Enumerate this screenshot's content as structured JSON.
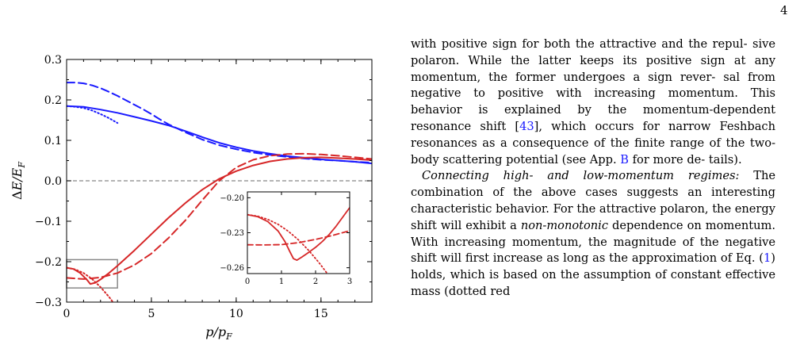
{
  "page_number": "4",
  "chart_data": [
    {
      "type": "line",
      "xlabel": "p/p_F",
      "ylabel": "ΔE/E_F",
      "xlim": [
        0,
        18
      ],
      "ylim": [
        -0.3,
        0.3
      ],
      "x_ticks": [
        "0",
        "5",
        "10",
        "15"
      ],
      "y_ticks": [
        "0.3",
        "0.2",
        "0.1",
        "0.0",
        "−0.1",
        "−0.2",
        "−0.3"
      ],
      "grid": false,
      "series": [
        {
          "style": "blue dashed",
          "color": "#1a1aff",
          "x": [
            0,
            0.5,
            1,
            1.5,
            2,
            2.5,
            3,
            3.5,
            4,
            4.5,
            5,
            5.5,
            6,
            7,
            8,
            9,
            10,
            11,
            12,
            13,
            14,
            15,
            16,
            17,
            18
          ],
          "y": [
            0.243,
            0.243,
            0.241,
            0.236,
            0.229,
            0.22,
            0.21,
            0.199,
            0.188,
            0.177,
            0.165,
            0.152,
            0.14,
            0.12,
            0.102,
            0.088,
            0.078,
            0.07,
            0.064,
            0.059,
            0.055,
            0.052,
            0.05,
            0.047,
            0.045
          ]
        },
        {
          "style": "blue solid",
          "color": "#1a1aff",
          "x": [
            0,
            1,
            2,
            3,
            4,
            5,
            6,
            7,
            8,
            9,
            10,
            11,
            12,
            13,
            14,
            15,
            16,
            17,
            18
          ],
          "y": [
            0.185,
            0.183,
            0.176,
            0.168,
            0.158,
            0.148,
            0.137,
            0.123,
            0.108,
            0.094,
            0.083,
            0.074,
            0.067,
            0.061,
            0.057,
            0.053,
            0.05,
            0.047,
            0.043
          ]
        },
        {
          "style": "blue dotted",
          "color": "#1a1aff",
          "x": [
            0,
            0.5,
            1,
            1.5,
            2,
            2.5,
            3
          ],
          "y": [
            0.185,
            0.183,
            0.18,
            0.174,
            0.165,
            0.155,
            0.143
          ]
        },
        {
          "style": "red dashed",
          "color": "#d62728",
          "x": [
            0,
            1,
            2,
            3,
            4,
            5,
            6,
            7,
            8,
            9,
            10,
            11,
            12,
            13,
            14,
            15,
            16,
            17,
            18
          ],
          "y": [
            -0.24,
            -0.243,
            -0.239,
            -0.228,
            -0.208,
            -0.18,
            -0.142,
            -0.098,
            -0.048,
            0.0,
            0.033,
            0.052,
            0.062,
            0.066,
            0.067,
            0.065,
            0.062,
            0.058,
            0.054
          ]
        },
        {
          "style": "red solid",
          "color": "#d62728",
          "x": [
            0,
            0.4,
            0.8,
            1.2,
            1.4,
            1.7,
            2,
            2.5,
            3,
            4,
            5,
            6,
            7,
            8,
            9,
            10,
            11,
            12,
            13,
            14,
            15,
            16,
            17,
            18
          ],
          "y": [
            -0.215,
            -0.218,
            -0.228,
            -0.245,
            -0.255,
            -0.252,
            -0.244,
            -0.228,
            -0.21,
            -0.172,
            -0.132,
            -0.092,
            -0.055,
            -0.022,
            0.005,
            0.024,
            0.038,
            0.048,
            0.054,
            0.057,
            0.058,
            0.056,
            0.054,
            0.051
          ]
        },
        {
          "style": "red dotted",
          "color": "#d62728",
          "x": [
            0,
            0.5,
            1,
            1.5,
            2,
            2.5,
            3
          ],
          "y": [
            -0.215,
            -0.219,
            -0.228,
            -0.243,
            -0.263,
            -0.287,
            -0.315
          ]
        }
      ],
      "zero_line": {
        "y": 0.0,
        "style": "gray dashed"
      },
      "inset_region": {
        "x": [
          0,
          3
        ],
        "y": [
          -0.265,
          -0.195
        ]
      }
    },
    {
      "type": "line",
      "name_role": "inset",
      "xlim": [
        0,
        3
      ],
      "ylim": [
        -0.265,
        -0.195
      ],
      "x_ticks": [
        "0",
        "1",
        "2",
        "3"
      ],
      "y_ticks": [
        "−0.20",
        "−0.23",
        "−0.26"
      ],
      "series": [
        {
          "style": "red dashed",
          "color": "#d62728",
          "x": [
            0,
            0.5,
            1,
            1.5,
            2,
            2.5,
            3
          ],
          "y": [
            -0.2403,
            -0.2405,
            -0.2402,
            -0.2385,
            -0.2357,
            -0.2323,
            -0.2283
          ]
        },
        {
          "style": "red solid",
          "color": "#d62728",
          "x": [
            0,
            0.3,
            0.6,
            0.9,
            1.1,
            1.25,
            1.35,
            1.45,
            1.6,
            1.8,
            2,
            2.2,
            2.4,
            2.6,
            2.8,
            3
          ],
          "y": [
            -0.2145,
            -0.2162,
            -0.2205,
            -0.2285,
            -0.2375,
            -0.2465,
            -0.2522,
            -0.2535,
            -0.2508,
            -0.2468,
            -0.2425,
            -0.2375,
            -0.2315,
            -0.2245,
            -0.2165,
            -0.2085
          ]
        },
        {
          "style": "red dotted",
          "color": "#d62728",
          "x": [
            0,
            0.3,
            0.6,
            0.9,
            1.2,
            1.5,
            1.8,
            2.1,
            2.4
          ],
          "y": [
            -0.2145,
            -0.2158,
            -0.2186,
            -0.2228,
            -0.2287,
            -0.2362,
            -0.2452,
            -0.2556,
            -0.2672
          ]
        }
      ]
    }
  ],
  "text": {
    "lines_p1": [
      "with positive sign for both the attractive and the repul-",
      "sive polaron.  While the latter keeps its positive sign",
      "at any momentum, the former undergoes a sign rever-",
      "sal from negative to positive with increasing momentum.",
      "This behavior is explained by the momentum-dependent",
      "resonance shift [",
      "43",
      "], which occurs for narrow Feshbach",
      "resonances as a consequence of the finite range of the",
      "two-body scattering potential (see App. ",
      "B",
      " for more de-",
      "tails)."
    ],
    "p2_heading": "Connecting high- and low-momentum regimes:",
    "p2_a": " The combination of the above cases suggests an interesting characteristic behavior. For the attractive polaron, the energy shift will exhibit a ",
    "p2_em": "non-monotonic",
    "p2_b": " dependence on momentum. With increasing momentum, the magnitude of the negative shift will first increase as long as the approximation of Eq. (",
    "p2_ref": "1",
    "p2_c": ") holds, which is based on the assumption of constant effective mass (dotted red"
  }
}
